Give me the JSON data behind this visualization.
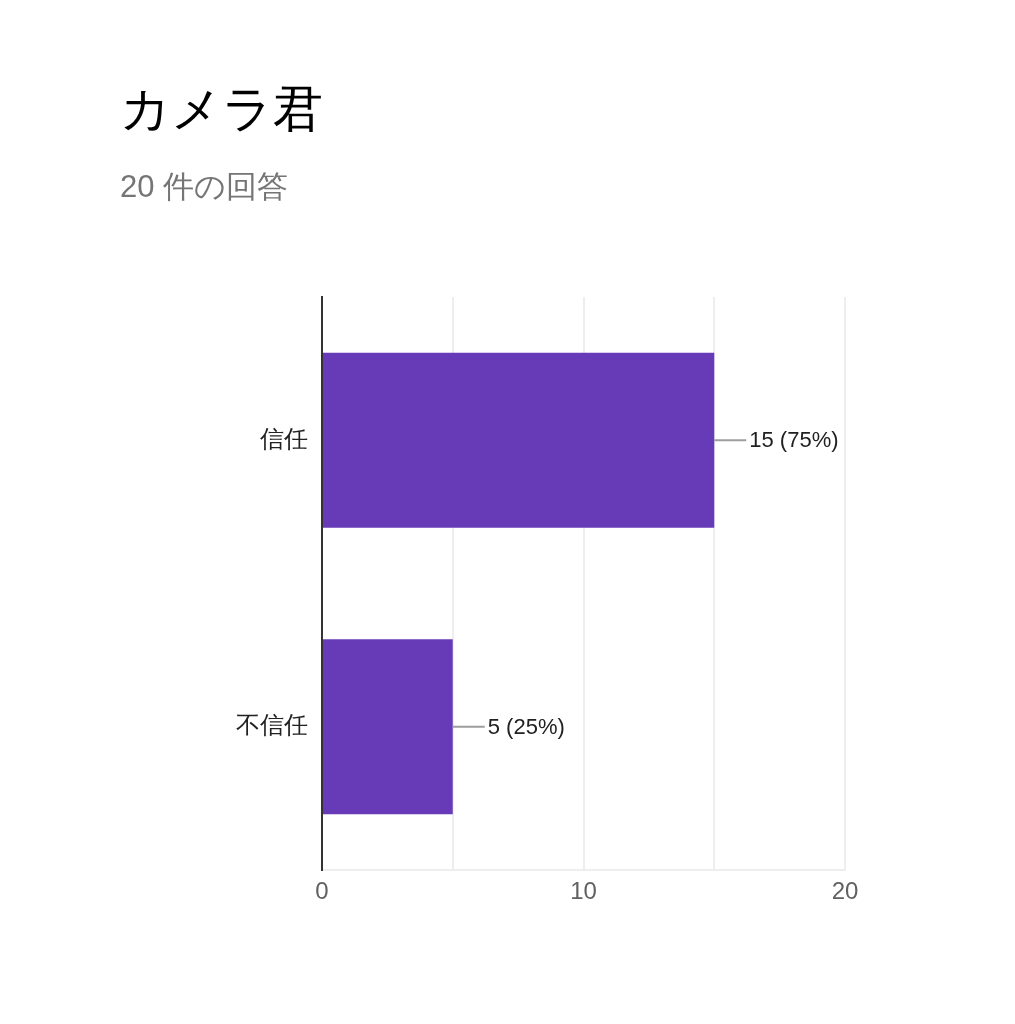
{
  "chart_data": {
    "type": "bar",
    "title": "カメラ君",
    "subtitle": "20 件の回答",
    "orientation": "horizontal",
    "categories": [
      "信任",
      "不信任"
    ],
    "values": [
      15,
      5
    ],
    "color": "#673ab7",
    "value_labels": [
      "15 (75%)",
      "5 (25%)"
    ],
    "xlim": [
      0,
      20
    ],
    "xticks": [
      0,
      {
        "value": 5,
        "label": null
      },
      10,
      {
        "value": 15,
        "label": null
      },
      20
    ],
    "grid": "x",
    "legend": false
  }
}
